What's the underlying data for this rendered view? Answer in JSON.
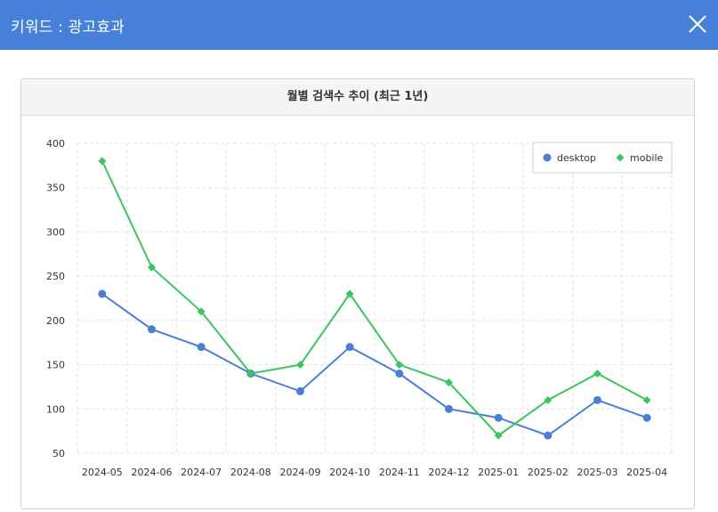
{
  "window": {
    "title": "키워드 : 광고효과",
    "close_icon": "close-icon"
  },
  "panel": {
    "heading": "월별 검색수 추이 (최근 1년)"
  },
  "chart_data": {
    "type": "line",
    "title": "월별 검색수 추이 (최근 1년)",
    "categories": [
      "2024-05",
      "2024-06",
      "2024-07",
      "2024-08",
      "2024-09",
      "2024-10",
      "2024-11",
      "2024-12",
      "2025-01",
      "2025-02",
      "2025-03",
      "2025-04"
    ],
    "series": [
      {
        "name": "desktop",
        "color": "#4a7fd4",
        "marker": "circle",
        "values": [
          230,
          190,
          170,
          140,
          120,
          170,
          140,
          100,
          90,
          70,
          110,
          90
        ]
      },
      {
        "name": "mobile",
        "color": "#3cc45e",
        "marker": "diamond",
        "values": [
          380,
          260,
          210,
          140,
          150,
          230,
          150,
          130,
          70,
          110,
          140,
          110
        ]
      }
    ],
    "ylim": [
      50,
      400
    ],
    "yticks": [
      50,
      100,
      150,
      200,
      250,
      300,
      350,
      400
    ],
    "grid": true,
    "legend": "top-right"
  }
}
